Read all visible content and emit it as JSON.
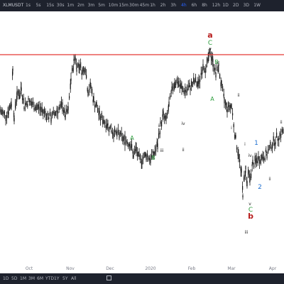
{
  "toolbar": {
    "symbol": "XLMUSDT",
    "timeframes": [
      "1s",
      "5s",
      "15s",
      "30s",
      "1m",
      "2m",
      "3m",
      "5m",
      "10m",
      "15m",
      "30m",
      "45m",
      "1h",
      "2h",
      "3h",
      "4h",
      "6h",
      "8h",
      "12h",
      "1D",
      "2D",
      "3D",
      "1W"
    ],
    "active_timeframe": "4h"
  },
  "bottom_toolbar": {
    "ranges": [
      "1D",
      "5D",
      "1M",
      "3M",
      "6M",
      "YTD",
      "1Y",
      "5Y",
      "All"
    ]
  },
  "colors": {
    "resistance_line": "#e53935",
    "wave_green": "#2e9e3e",
    "wave_red": "#b71c1c",
    "wave_blue": "#1e6fd0",
    "wave_black": "#222222",
    "candles": "#111111"
  },
  "chart_data": {
    "type": "line",
    "x_ticks": [
      "Oct",
      "Nov",
      "Dec",
      "2020",
      "Feb",
      "Mar",
      "Apr"
    ],
    "resistance_level": true,
    "series": [
      {
        "x": [
          0,
          8,
          12,
          16,
          18,
          20,
          22,
          24,
          26,
          28,
          30,
          34,
          40,
          48,
          56,
          64,
          72,
          80,
          88,
          92,
          96,
          100,
          104,
          106,
          108,
          112,
          116,
          120,
          124,
          128,
          132,
          136,
          140,
          146,
          152,
          160,
          168,
          176,
          184,
          188,
          192,
          196,
          200,
          206,
          212,
          218,
          222,
          226,
          230,
          234,
          238,
          242,
          246,
          250,
          256,
          262,
          268,
          274,
          280,
          286,
          290,
          294,
          296,
          298,
          300,
          304,
          308,
          312,
          316,
          320,
          326,
          332,
          336,
          340,
          342,
          344,
          346,
          348,
          350,
          352,
          356,
          360,
          364,
          370,
          376,
          382,
          388,
          394,
          400
        ],
        "y": [
          62,
          60,
          62,
          65,
          80,
          57,
          66,
          68,
          70,
          68,
          72,
          64,
          66,
          64,
          63,
          61,
          59,
          62,
          64,
          60,
          62,
          75,
          82,
          84,
          80,
          81,
          78,
          80,
          70,
          72,
          66,
          64,
          60,
          58,
          56,
          53,
          52,
          50,
          48,
          44,
          46,
          42,
          42,
          44,
          42,
          45,
          48,
          56,
          60,
          58,
          64,
          70,
          74,
          74,
          71,
          70,
          72,
          74,
          73,
          81,
          79,
          84,
          86,
          84,
          82,
          77,
          80,
          72,
          66,
          63,
          64,
          50,
          44,
          36,
          28,
          34,
          38,
          32,
          36,
          34,
          40,
          41,
          42,
          43,
          44,
          48,
          50,
          52,
          54
        ]
      }
    ]
  },
  "wave_labels": [
    {
      "text": "a",
      "color": "red"
    },
    {
      "text": "C",
      "color": "green"
    },
    {
      "text": "v",
      "color": "black"
    },
    {
      "text": "B",
      "color": "green"
    },
    {
      "text": "A",
      "color": "green"
    },
    {
      "text": "iii",
      "color": "black"
    },
    {
      "text": "ii",
      "color": "black"
    },
    {
      "text": "iv",
      "color": "black"
    },
    {
      "text": "i",
      "color": "black"
    },
    {
      "text": "A",
      "color": "green"
    },
    {
      "text": "B",
      "color": "green"
    },
    {
      "text": "ii",
      "color": "black"
    },
    {
      "text": "iii",
      "color": "black"
    },
    {
      "text": "ii",
      "color": "black"
    },
    {
      "text": "i",
      "color": "black"
    },
    {
      "text": "1",
      "color": "blue"
    },
    {
      "text": "iv",
      "color": "black"
    },
    {
      "text": "i",
      "color": "black"
    },
    {
      "text": "ii",
      "color": "black"
    },
    {
      "text": "2",
      "color": "blue"
    },
    {
      "text": "v",
      "color": "black"
    },
    {
      "text": "C",
      "color": "green"
    },
    {
      "text": "b",
      "color": "red"
    },
    {
      "text": "iii",
      "color": "black"
    },
    {
      "text": "ii",
      "color": "black"
    }
  ]
}
